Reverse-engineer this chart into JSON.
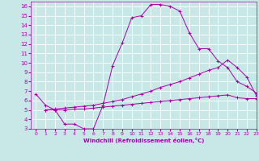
{
  "xlabel": "Windchill (Refroidissement éolien,°C)",
  "bg_color": "#c8e8e8",
  "line_color": "#aa00aa",
  "grid_color": "#ffffff",
  "xlim": [
    -0.5,
    23
  ],
  "ylim": [
    3,
    16.5
  ],
  "xticks": [
    0,
    1,
    2,
    3,
    4,
    5,
    6,
    7,
    8,
    9,
    10,
    11,
    12,
    13,
    14,
    15,
    16,
    17,
    18,
    19,
    20,
    21,
    22,
    23
  ],
  "yticks": [
    3,
    4,
    5,
    6,
    7,
    8,
    9,
    10,
    11,
    12,
    13,
    14,
    15,
    16
  ],
  "curve1_x": [
    0,
    1,
    2,
    3,
    4,
    5,
    6,
    7,
    8,
    9,
    10,
    11,
    12,
    13,
    14,
    15,
    16,
    17,
    18,
    19,
    20,
    21,
    22,
    23
  ],
  "curve1_y": [
    6.7,
    5.5,
    5.0,
    3.5,
    3.5,
    3.0,
    3.0,
    5.5,
    9.7,
    12.1,
    14.8,
    15.0,
    16.2,
    16.2,
    16.0,
    15.5,
    13.2,
    11.5,
    11.5,
    10.2,
    9.5,
    8.0,
    7.5,
    6.8
  ],
  "curve2_x": [
    1,
    2,
    3,
    4,
    5,
    6,
    7,
    8,
    9,
    10,
    11,
    12,
    13,
    14,
    15,
    16,
    17,
    18,
    19,
    20,
    21,
    22,
    23
  ],
  "curve2_y": [
    5.0,
    5.1,
    5.2,
    5.3,
    5.4,
    5.5,
    5.7,
    5.9,
    6.1,
    6.4,
    6.7,
    7.0,
    7.4,
    7.7,
    8.0,
    8.4,
    8.8,
    9.2,
    9.5,
    10.3,
    9.5,
    8.5,
    6.5
  ],
  "curve3_x": [
    1,
    2,
    3,
    4,
    5,
    6,
    7,
    8,
    9,
    10,
    11,
    12,
    13,
    14,
    15,
    16,
    17,
    18,
    19,
    20,
    21,
    22,
    23
  ],
  "curve3_y": [
    5.0,
    5.0,
    5.0,
    5.1,
    5.1,
    5.2,
    5.3,
    5.4,
    5.5,
    5.6,
    5.7,
    5.8,
    5.9,
    6.0,
    6.1,
    6.2,
    6.3,
    6.4,
    6.5,
    6.6,
    6.3,
    6.2,
    6.2
  ]
}
